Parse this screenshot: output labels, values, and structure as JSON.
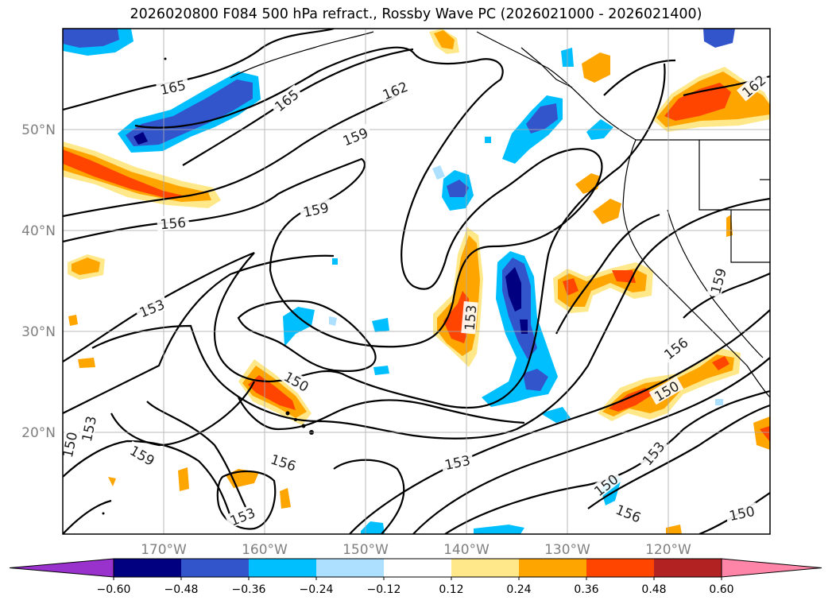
{
  "title": "2026020800 F084 500 hPa refract., Rossby Wave PC (2026021000 - 2026021400)",
  "lat_labels": [
    "50°N",
    "40°N",
    "30°N",
    "20°N"
  ],
  "lon_labels": [
    "170°W",
    "160°W",
    "150°W",
    "140°W",
    "130°W",
    "120°W"
  ],
  "contour_labels": [
    "165",
    "165",
    "162",
    "162",
    "159",
    "159",
    "159",
    "159",
    "156",
    "156",
    "156",
    "156",
    "153",
    "153",
    "153",
    "153",
    "153",
    "153",
    "150",
    "150",
    "150",
    "150",
    "150"
  ],
  "colorbar": {
    "ticks": [
      "−0.60",
      "−0.48",
      "−0.36",
      "−0.24",
      "−0.12",
      "0.12",
      "0.24",
      "0.36",
      "0.48",
      "0.60"
    ],
    "colors": [
      "#9932CC",
      "#000080",
      "#3355CC",
      "#00BFFF",
      "#ADE0FF",
      "#FFFFFF",
      "#FFE88A",
      "#FFA500",
      "#FF4500",
      "#B22222",
      "#FF85A8"
    ]
  },
  "fill_colors": {
    "neg1": "#ADE0FF",
    "neg2": "#00BFFF",
    "neg3": "#3355CC",
    "neg4": "#000080",
    "pos1": "#FFE88A",
    "pos2": "#FFA500",
    "pos3": "#FF4500"
  }
}
